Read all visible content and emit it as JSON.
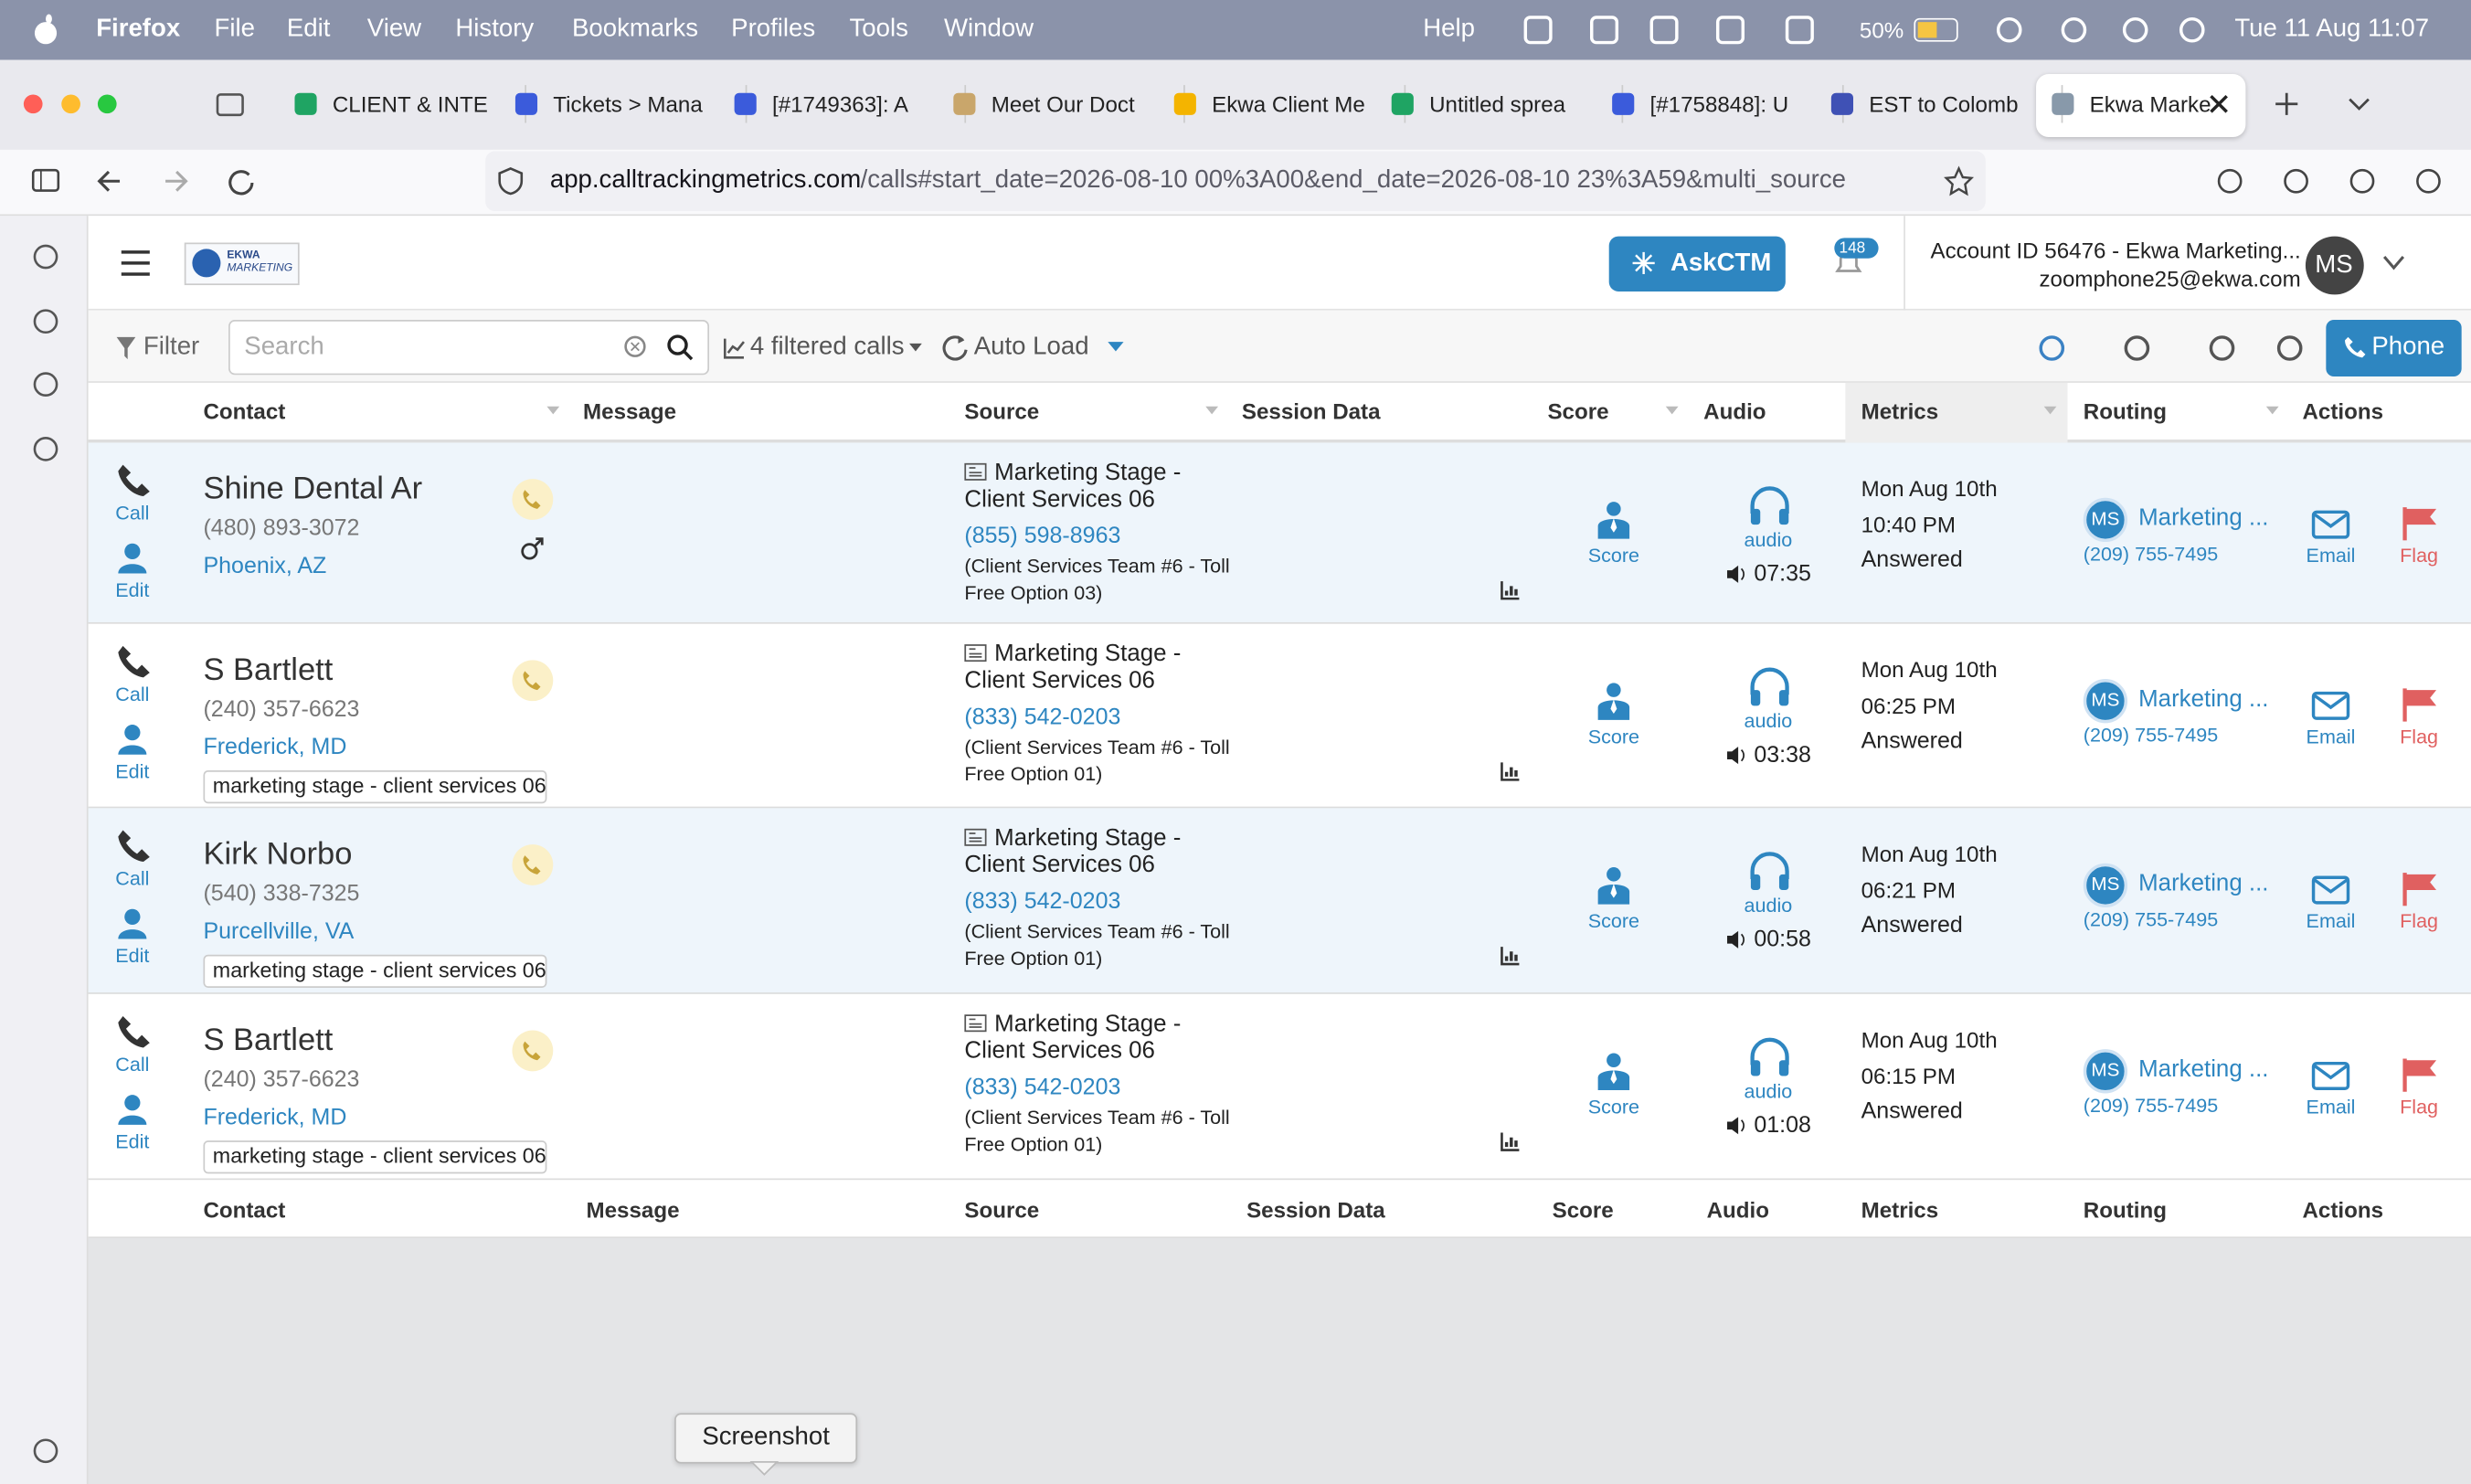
{
  "menubar": {
    "app": "Firefox",
    "menus": [
      "File",
      "Edit",
      "View",
      "History",
      "Bookmarks",
      "Profiles",
      "Tools",
      "Window",
      "Help"
    ],
    "battery": "50%",
    "datetime": "Tue 11 Aug 11:07"
  },
  "tabs": [
    "CLIENT & INTE",
    "Tickets > Mana",
    "[#1749363]: A",
    "Meet Our Doct",
    "Ekwa Client Me",
    "Untitled sprea",
    "[#1758848]: U",
    "EST to Colomb",
    "Ekwa Marke"
  ],
  "url": {
    "host": "app.calltrackingmetrics.com",
    "path": "/calls#start_date=2026-08-10 00%3A00&end_date=2026-08-10 23%3A59&multi_source"
  },
  "header": {
    "logo": [
      "EKWA",
      "MARKETING"
    ],
    "askctm": "AskCTM",
    "notifications": "148",
    "account": "Account ID 56476  -  Ekwa Marketing...",
    "email": "zoomphone25@ekwa.com",
    "avatar": "MS"
  },
  "toolbar": {
    "filter": "Filter",
    "search_placeholder": "Search",
    "filtered": "4 filtered calls",
    "autoload": "Auto Load",
    "phone": "Phone"
  },
  "table": {
    "columns": [
      "Contact",
      "Message",
      "Source",
      "Session Data",
      "Score",
      "Audio",
      "Metrics",
      "Routing",
      "Actions"
    ],
    "rows": [
      {
        "call": "Call",
        "edit": "Edit",
        "name": "Shine Dental Ar",
        "phone": "(480) 893-3072",
        "location": "Phoenix, AZ",
        "source_title": "Marketing Stage - Client Services 06",
        "source_number": "(855) 598-8963",
        "source_desc": "(Client Services Team #6 - Toll Free Option 03)",
        "score": "Score",
        "audio": "audio",
        "duration": "07:35",
        "date": "Mon Aug 10th",
        "time": "10:40 PM",
        "status": "Answered",
        "routing_avatar": "MS",
        "routing_name": "Marketing ...",
        "routing_phone": "(209) 755-7495",
        "email": "Email",
        "flag": "Flag"
      },
      {
        "call": "Call",
        "edit": "Edit",
        "name": "S Bartlett",
        "phone": "(240) 357-6623",
        "location": "Frederick, MD",
        "tag": "marketing stage - client services 06",
        "source_title": "Marketing Stage - Client Services 06",
        "source_number": "(833) 542-0203",
        "source_desc": "(Client Services Team #6 - Toll Free Option 01)",
        "score": "Score",
        "audio": "audio",
        "duration": "03:38",
        "date": "Mon Aug 10th",
        "time": "06:25 PM",
        "status": "Answered",
        "routing_avatar": "MS",
        "routing_name": "Marketing ...",
        "routing_phone": "(209) 755-7495",
        "email": "Email",
        "flag": "Flag"
      },
      {
        "call": "Call",
        "edit": "Edit",
        "name": "Kirk Norbo",
        "phone": "(540) 338-7325",
        "location": "Purcellville, VA",
        "tag": "marketing stage - client services 06",
        "source_title": "Marketing Stage - Client Services 06",
        "source_number": "(833) 542-0203",
        "source_desc": "(Client Services Team #6 - Toll Free Option 01)",
        "score": "Score",
        "audio": "audio",
        "duration": "00:58",
        "date": "Mon Aug 10th",
        "time": "06:21 PM",
        "status": "Answered",
        "routing_avatar": "MS",
        "routing_name": "Marketing ...",
        "routing_phone": "(209) 755-7495",
        "email": "Email",
        "flag": "Flag"
      },
      {
        "call": "Call",
        "edit": "Edit",
        "name": "S Bartlett",
        "phone": "(240) 357-6623",
        "location": "Frederick, MD",
        "tag": "marketing stage - client services 06",
        "source_title": "Marketing Stage - Client Services 06",
        "source_number": "(833) 542-0203",
        "source_desc": "(Client Services Team #6 - Toll Free Option 01)",
        "score": "Score",
        "audio": "audio",
        "duration": "01:08",
        "date": "Mon Aug 10th",
        "time": "06:15 PM",
        "status": "Answered",
        "routing_avatar": "MS",
        "routing_name": "Marketing ...",
        "routing_phone": "(209) 755-7495",
        "email": "Email",
        "flag": "Flag"
      }
    ]
  },
  "tooltip": "Screenshot"
}
